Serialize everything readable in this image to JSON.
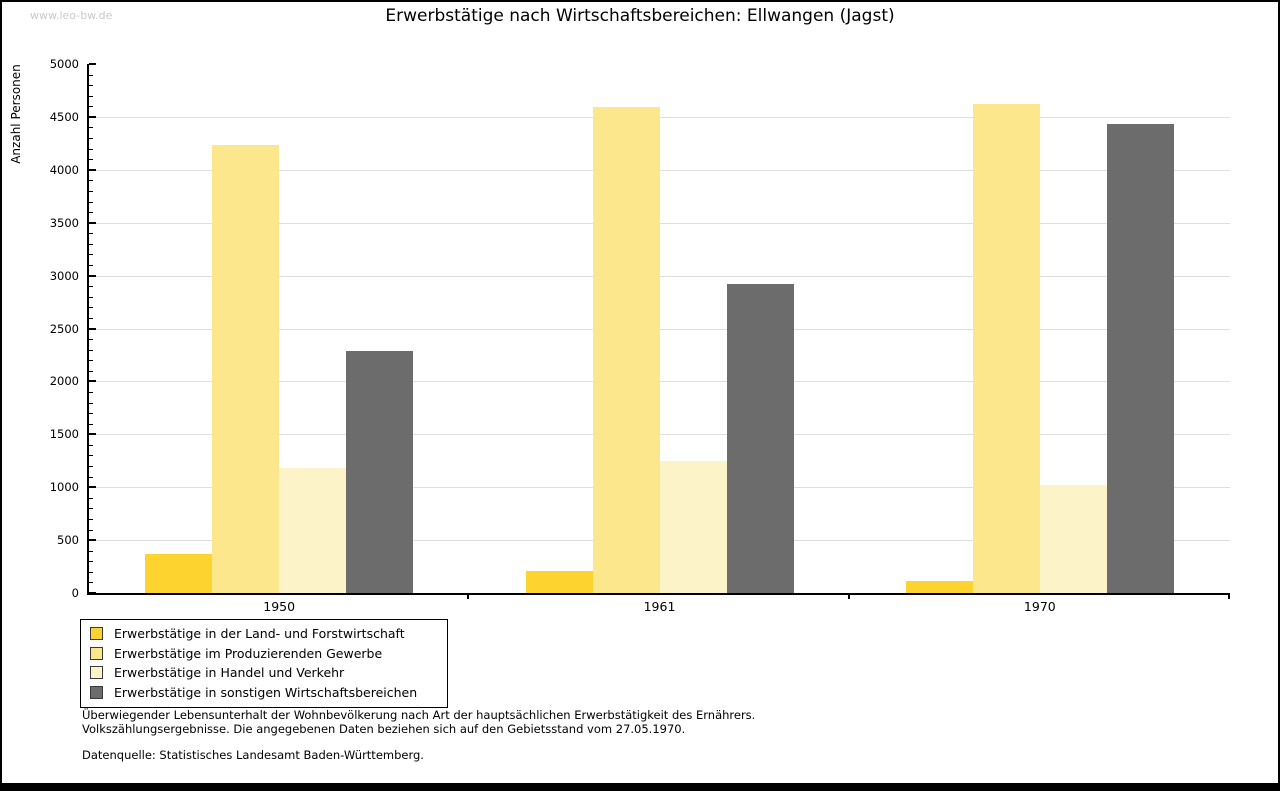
{
  "page": {
    "watermark": "www.leo-bw.de"
  },
  "chart_data": {
    "type": "bar",
    "title": "Erwerbstätige nach Wirtschaftsbereichen: Ellwangen (Jagst)",
    "ylabel": "Anzahl Personen",
    "xlabel": "",
    "categories": [
      "1950",
      "1961",
      "1970"
    ],
    "series": [
      {
        "name": "Erwerbstätige in der Land- und Forstwirtschaft",
        "color": "#FCD32F",
        "values": [
          365,
          205,
          112
        ]
      },
      {
        "name": "Erwerbstätige im Produzierenden Gewerbe",
        "color": "#FCE78C",
        "values": [
          4230,
          4595,
          4625
        ]
      },
      {
        "name": "Erwerbstätige in Handel und Verkehr",
        "color": "#FCF4C8",
        "values": [
          1185,
          1245,
          1022
        ]
      },
      {
        "name": "Erwerbstätige in sonstigen Wirtschaftsbereichen",
        "color": "#6C6C6C",
        "values": [
          2290,
          2925,
          4430
        ]
      }
    ],
    "ylim": [
      0,
      5000
    ],
    "ytick_step": 500,
    "minor_tick_step": 100,
    "grid": "horizontal-major",
    "legend_position": "bottom-left"
  },
  "footer": {
    "note_line1": "Überwiegender Lebensunterhalt der Wohnbevölkerung nach Art der hauptsächlichen Erwerbstätigkeit des Ernährers.",
    "note_line2": "Volkszählungsergebnisse. Die angegebenen Daten beziehen sich auf den Gebietsstand vom 27.05.1970.",
    "source": "Datenquelle: Statistisches Landesamt Baden-Württemberg."
  }
}
